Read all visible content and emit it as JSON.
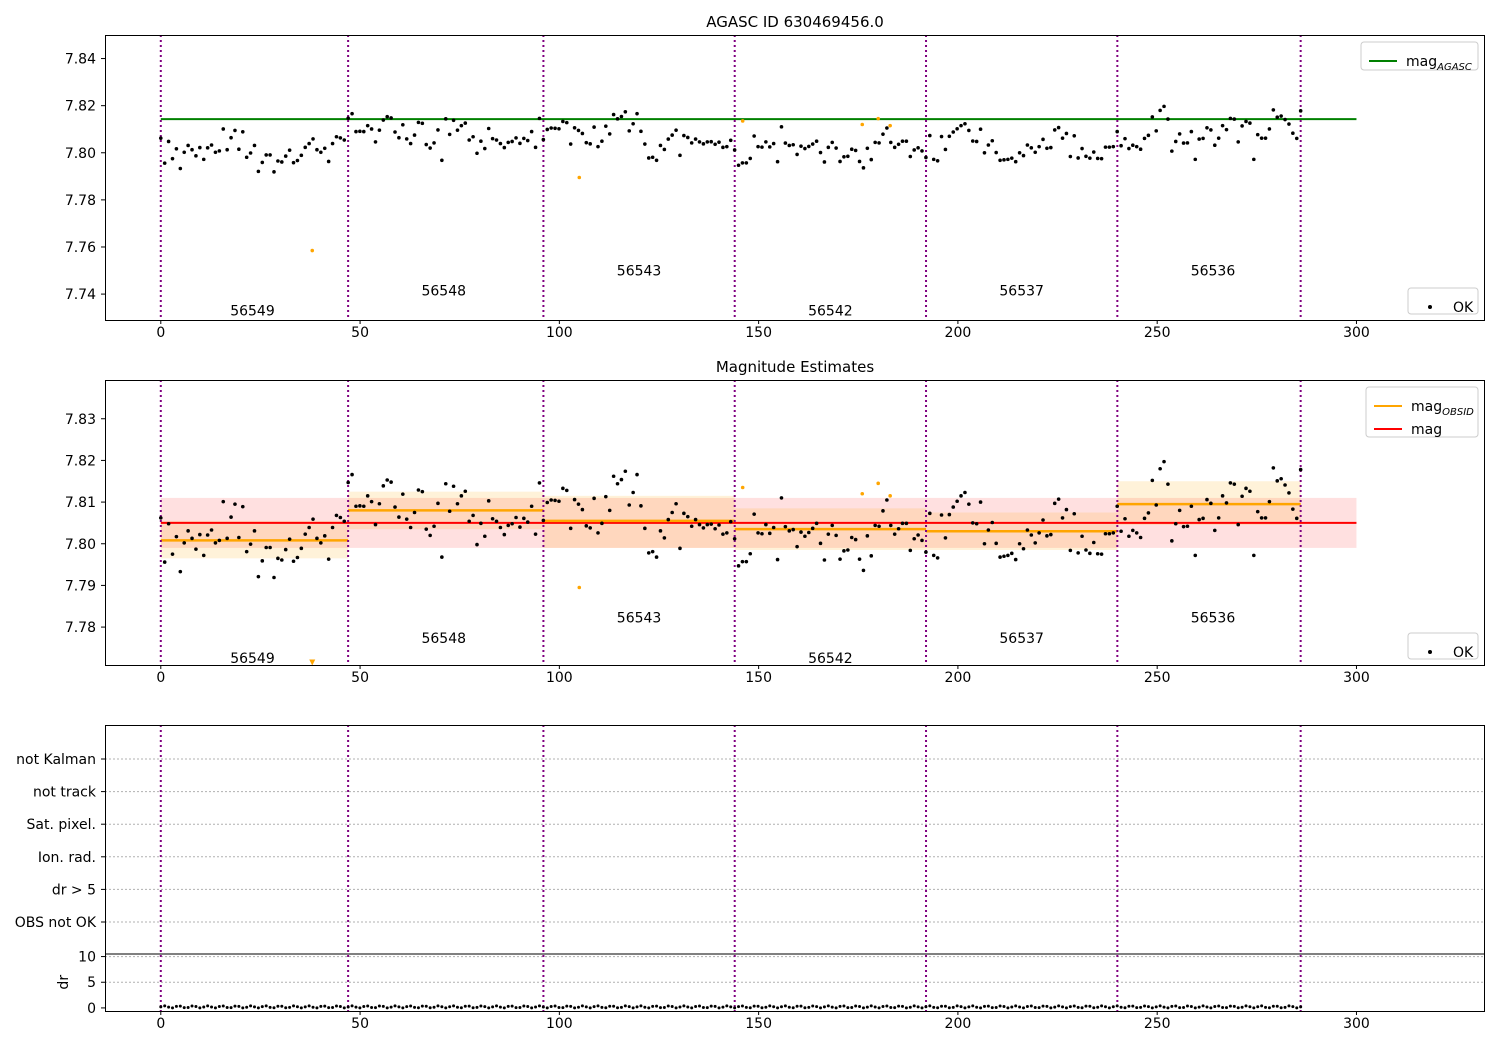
{
  "chart_data": [
    {
      "type": "scatter",
      "title": "AGASC ID 630469456.0",
      "xlim": [
        -14,
        332
      ],
      "ylim": [
        7.729,
        7.85
      ],
      "x_ticks": [
        0,
        50,
        100,
        150,
        200,
        250,
        300
      ],
      "y_ticks": [
        7.74,
        7.76,
        7.78,
        7.8,
        7.82,
        7.84
      ],
      "y_tick_labels": [
        "7.74",
        "7.76",
        "7.78",
        "7.80",
        "7.82",
        "7.84"
      ],
      "obsid_boundaries": [
        0,
        47,
        96,
        144,
        192,
        240,
        286
      ],
      "obsid_labels": [
        {
          "label": "56549",
          "x": 23,
          "y": 7.733
        },
        {
          "label": "56548",
          "x": 71,
          "y": 7.7415
        },
        {
          "label": "56543",
          "x": 120,
          "y": 7.75
        },
        {
          "label": "56542",
          "x": 168,
          "y": 7.733
        },
        {
          "label": "56537",
          "x": 216,
          "y": 7.7415
        },
        {
          "label": "56536",
          "x": 264,
          "y": 7.75
        }
      ],
      "reference_line": {
        "name": "mag_AGASC",
        "value": 7.8143,
        "x_range": [
          0,
          300
        ],
        "color": "#008000"
      },
      "outliers": [
        {
          "x": 38,
          "y": 7.7585
        },
        {
          "x": 105,
          "y": 7.7895
        },
        {
          "x": 146,
          "y": 7.8135
        },
        {
          "x": 176,
          "y": 7.812
        },
        {
          "x": 180,
          "y": 7.8145
        },
        {
          "x": 183,
          "y": 7.8115
        }
      ],
      "legends": [
        {
          "position": "upper-right",
          "entries": [
            {
              "label": "mag",
              "sub": "AGASC",
              "kind": "line",
              "color": "#008000"
            }
          ]
        },
        {
          "position": "lower-right",
          "entries": [
            {
              "label": "OK",
              "kind": "dot",
              "color": "#000000"
            }
          ]
        }
      ]
    },
    {
      "type": "scatter",
      "title": "Magnitude Estimates",
      "xlim": [
        -14,
        332
      ],
      "ylim": [
        7.7709,
        7.8393
      ],
      "x_ticks": [
        0,
        50,
        100,
        150,
        200,
        250,
        300
      ],
      "y_ticks": [
        7.78,
        7.79,
        7.8,
        7.81,
        7.82,
        7.83
      ],
      "y_tick_labels": [
        "7.78",
        "7.79",
        "7.80",
        "7.81",
        "7.82",
        "7.83"
      ],
      "obsid_boundaries": [
        0,
        47,
        96,
        144,
        192,
        240,
        286
      ],
      "obsid_labels": [
        {
          "label": "56549",
          "x": 23,
          "y": 7.7726
        },
        {
          "label": "56548",
          "x": 71,
          "y": 7.7774
        },
        {
          "label": "56543",
          "x": 120,
          "y": 7.7823
        },
        {
          "label": "56542",
          "x": 168,
          "y": 7.7726
        },
        {
          "label": "56537",
          "x": 216,
          "y": 7.7774
        },
        {
          "label": "56536",
          "x": 264,
          "y": 7.7823
        }
      ],
      "mag": {
        "value": 7.805,
        "band": [
          7.799,
          7.811
        ],
        "x_range": [
          0,
          300
        ],
        "color": "#ff0000"
      },
      "mag_obsid": [
        {
          "x0": 0,
          "x1": 47,
          "value": 7.8008,
          "band": [
            7.7965,
            7.8055
          ]
        },
        {
          "x0": 47,
          "x1": 96,
          "value": 7.808,
          "band": [
            7.8035,
            7.8125
          ]
        },
        {
          "x0": 96,
          "x1": 144,
          "value": 7.8055,
          "band": [
            7.799,
            7.8115
          ]
        },
        {
          "x0": 144,
          "x1": 192,
          "value": 7.8035,
          "band": [
            7.7985,
            7.8085
          ]
        },
        {
          "x0": 192,
          "x1": 240,
          "value": 7.803,
          "band": [
            7.7985,
            7.8075
          ]
        },
        {
          "x0": 240,
          "x1": 286,
          "value": 7.8095,
          "band": [
            7.8045,
            7.815
          ]
        }
      ],
      "outliers": [
        {
          "x": 38,
          "y": 7.7715,
          "marker": "triangle-down"
        },
        {
          "x": 105,
          "y": 7.7895
        },
        {
          "x": 146,
          "y": 7.8135
        },
        {
          "x": 176,
          "y": 7.812
        },
        {
          "x": 180,
          "y": 7.8145
        },
        {
          "x": 183,
          "y": 7.8115
        }
      ],
      "legends": [
        {
          "position": "upper-right",
          "entries": [
            {
              "label": "mag",
              "sub": "OBSID",
              "kind": "line",
              "color": "#ffa500"
            },
            {
              "label": "mag",
              "sub": "",
              "kind": "line",
              "color": "#ff0000"
            }
          ]
        },
        {
          "position": "lower-right",
          "entries": [
            {
              "label": "OK",
              "kind": "dot",
              "color": "#000000"
            }
          ]
        }
      ]
    },
    {
      "type": "table",
      "xlim": [
        -14,
        332
      ],
      "x_ticks": [
        0,
        50,
        100,
        150,
        200,
        250,
        300
      ],
      "obsid_boundaries": [
        0,
        47,
        96,
        144,
        192,
        240,
        286
      ],
      "flag_rows": [
        "not Kalman",
        "not track",
        "Sat. pixel.",
        "Ion. rad.",
        "dr > 5",
        "OBS not OK"
      ],
      "dr": {
        "ylabel": "dr",
        "y_ticks": [
          0,
          5,
          10
        ],
        "ylim": [
          -0.6,
          10.5
        ],
        "value_range": [
          0,
          0.4
        ]
      }
    }
  ],
  "mag_points": {
    "x_range": [
      0,
      286
    ],
    "values": [
      7.8062,
      7.7956,
      7.8048,
      7.7975,
      7.8017,
      7.7933,
      7.8002,
      7.8031,
      7.8013,
      7.7987,
      7.8022,
      7.7972,
      7.8021,
      7.8033,
      7.8002,
      7.8008,
      7.8101,
      7.8013,
      7.8064,
      7.8095,
      7.8015,
      7.8089,
      7.7981,
      7.7999,
      7.8031,
      7.7921,
      7.7959,
      7.7991,
      7.7991,
      7.7919,
      7.7965,
      7.7961,
      7.7986,
      7.8011,
      7.7958,
      7.7967,
      7.7989,
      7.8023,
      7.8039,
      7.8059,
      7.8013,
      7.8002,
      7.8019,
      7.7963,
      7.8039,
      7.8068,
      7.8063,
      7.8054,
      7.8147,
      7.8166,
      7.809,
      7.8091,
      7.809,
      7.8115,
      7.8101,
      7.8046,
      7.8096,
      7.8139,
      7.8153,
      7.8148,
      7.8088,
      7.8064,
      7.8119,
      7.8059,
      7.8039,
      7.8075,
      7.8129,
      7.8125,
      7.8035,
      7.802,
      7.8042,
      7.8097,
      7.7968,
      7.8144,
      7.8078,
      7.8138,
      7.8096,
      7.8115,
      7.8126,
      7.8054,
      7.8068,
      7.7998,
      7.8049,
      7.8018,
      7.8103,
      7.806,
      7.8054,
      7.8039,
      7.8022,
      7.8044,
      7.8048,
      7.8063,
      7.804,
      7.8061,
      7.8052,
      7.809,
      7.8023,
      7.8146,
      7.8056,
      7.8099,
      7.8105,
      7.8104,
      7.8102,
      7.8133,
      7.8128,
      7.8037,
      7.8106,
      7.8095,
      7.8082,
      7.8043,
      7.8038,
      7.8109,
      7.8026,
      7.8049,
      7.8113,
      7.808,
      7.8162,
      7.8144,
      7.8154,
      7.8174,
      7.8093,
      7.8123,
      7.8166,
      7.8091,
      7.8037,
      7.7978,
      7.7981,
      7.7968,
      7.8031,
      7.8014,
      7.8058,
      7.8075,
      7.8096,
      7.7989,
      7.8073,
      7.8065,
      7.8042,
      7.8058,
      7.8046,
      7.8038,
      7.8046,
      7.8047,
      7.8036,
      7.8045,
      7.8023,
      7.8026,
      7.8053,
      7.8012,
      7.7947,
      7.7957,
      7.7957,
      7.7976,
      7.8071,
      7.8026,
      7.8024,
      7.8046,
      7.8025,
      7.8039,
      7.7962,
      7.811,
      7.8041,
      7.8031,
      7.8034,
      7.7993,
      7.8028,
      7.8018,
      7.8027,
      7.8037,
      7.8049,
      7.8001,
      7.7961,
      7.8023,
      7.8044,
      7.802,
      7.7963,
      7.7983,
      7.7985,
      7.8015,
      7.801,
      7.7963,
      7.7936,
      7.8019,
      7.7971,
      7.8044,
      7.8042,
      7.8079,
      7.8105,
      7.8044,
      7.8023,
      7.8036,
      7.8049,
      7.8049,
      7.7984,
      7.8012,
      7.8021,
      7.8008,
      7.798,
      7.8073,
      7.7972,
      7.7966,
      7.8069,
      7.8014,
      7.807,
      7.8088,
      7.8102,
      7.8115,
      7.8123,
      7.8095,
      7.805,
      7.8048,
      7.81,
      7.8,
      7.8033,
      7.8051,
      7.8001,
      7.7968,
      7.797,
      7.7972,
      7.7977,
      7.7962,
      7.8,
      7.7988,
      7.8033,
      7.8021,
      7.8002,
      7.8026,
      7.8057,
      7.8019,
      7.8022,
      7.8097,
      7.8107,
      7.8062,
      7.8082,
      7.7984,
      7.8072,
      7.7978,
      7.8018,
      7.7985,
      7.7977,
      7.8003,
      7.7976,
      7.7975,
      7.8024,
      7.8024,
      7.8026,
      7.809,
      7.803,
      7.806,
      7.8018,
      7.8032,
      7.8026,
      7.8015,
      7.8061,
      7.8074,
      7.8152,
      7.8093,
      7.818,
      7.8197,
      7.8143,
      7.8007,
      7.8048,
      7.808,
      7.8041,
      7.8042,
      7.809,
      7.7972,
      7.8058,
      7.8061,
      7.8106,
      7.8097,
      7.8032,
      7.8062,
      7.8115,
      7.8098,
      7.8146,
      7.8143,
      7.8046,
      7.8114,
      7.8133,
      7.8126,
      7.7972,
      7.8077,
      7.8062,
      7.8062,
      7.8101,
      7.8182,
      7.8151,
      7.8156,
      7.8141,
      7.8122,
      7.8083,
      7.8061,
      7.8178
    ]
  }
}
